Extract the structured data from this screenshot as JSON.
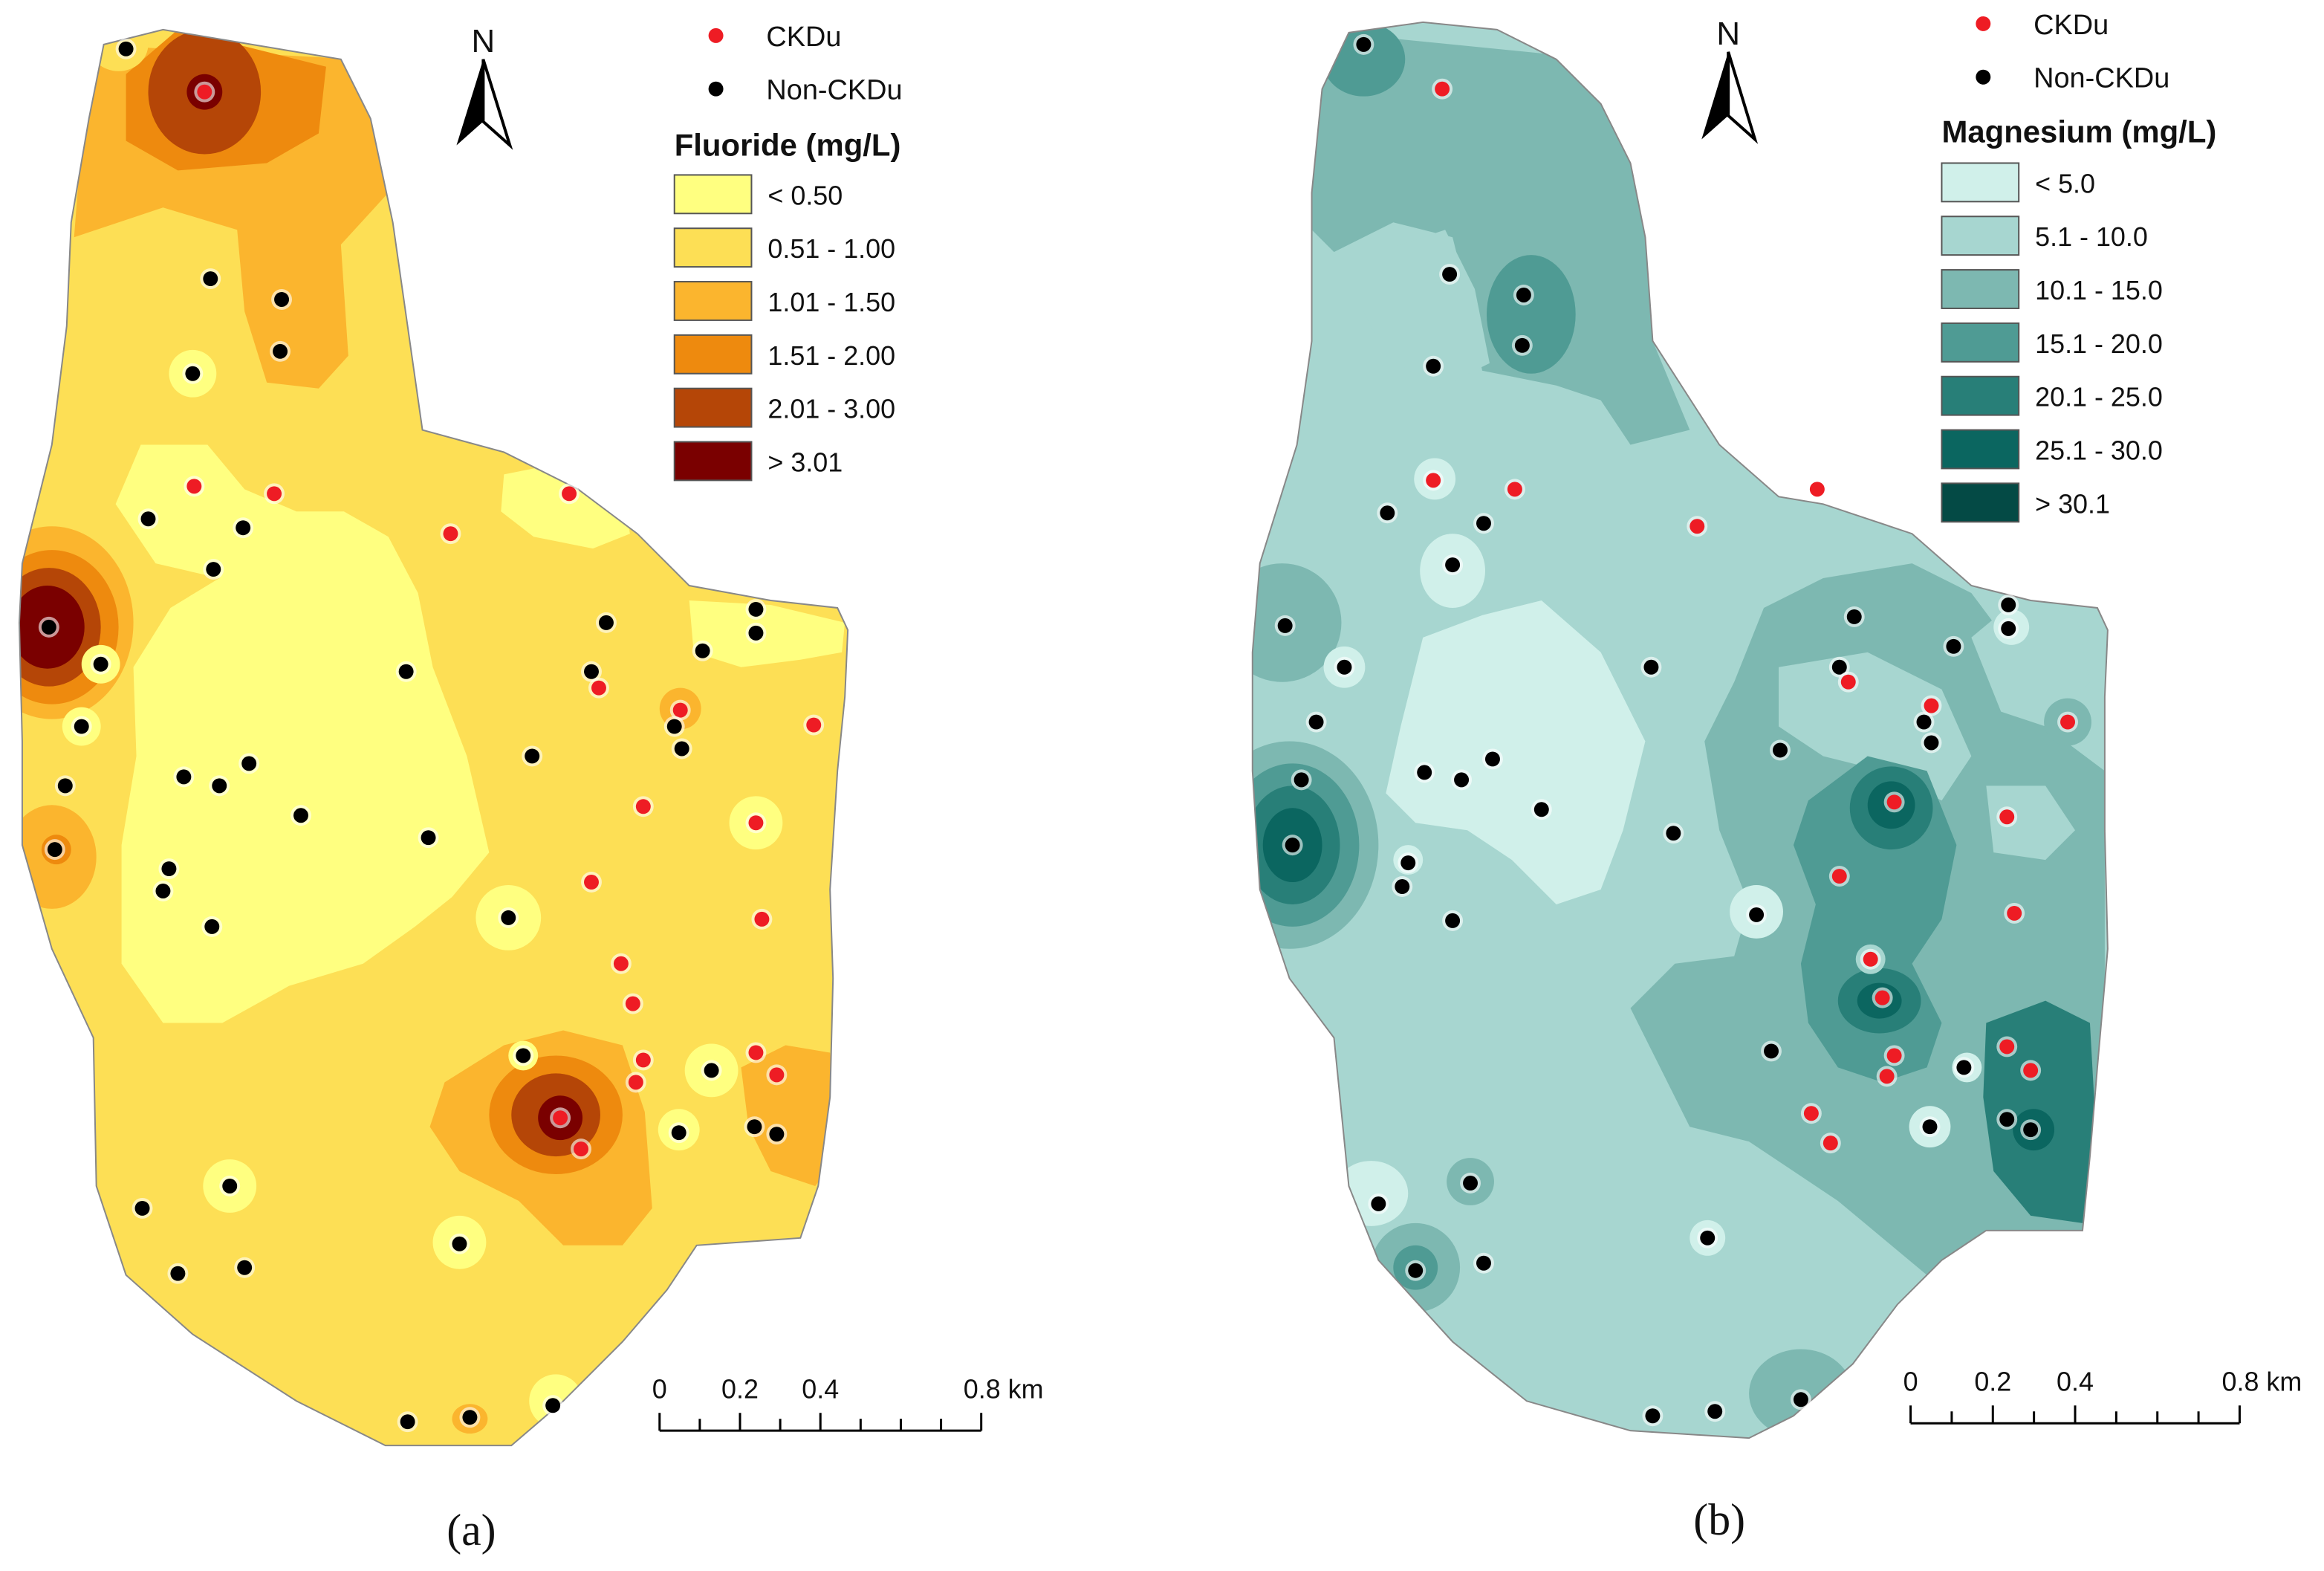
{
  "panels": [
    {
      "id": "a",
      "caption": "(a)",
      "north": "N",
      "legend_title": "Fluoride (mg/L)",
      "classes": [
        {
          "label": "< 0.50",
          "color": "#ffff80"
        },
        {
          "label": "0.51 - 1.00",
          "color": "#fddf55"
        },
        {
          "label": "1.01 - 1.50",
          "color": "#fbb52e"
        },
        {
          "label": "1.51 - 2.00",
          "color": "#ee8a0e"
        },
        {
          "label": "2.01 - 3.00",
          "color": "#b54607"
        },
        {
          "label": "> 3.01",
          "color": "#7a0000"
        }
      ],
      "points_legend": [
        {
          "label": "CKDu",
          "color": "#ee1c24"
        },
        {
          "label": "Non-CKDu",
          "color": "#000000"
        }
      ],
      "scale": {
        "ticks": [
          "0",
          "0.2",
          "0.4",
          "0.8 km"
        ]
      }
    },
    {
      "id": "b",
      "caption": "(b)",
      "north": "N",
      "legend_title": "Magnesium (mg/L)",
      "classes": [
        {
          "label": "< 5.0",
          "color": "#d0f0ea"
        },
        {
          "label": "5.1 - 10.0",
          "color": "#a7d6d0"
        },
        {
          "label": "10.1 - 15.0",
          "color": "#7db8b1"
        },
        {
          "label": "15.1 - 20.0",
          "color": "#4f9b94"
        },
        {
          "label": "20.1 - 25.0",
          "color": "#287f78"
        },
        {
          "label": "25.1 - 30.0",
          "color": "#0b6660"
        },
        {
          "label": "> 30.1",
          "color": "#044a45"
        }
      ],
      "points_legend": [
        {
          "label": "CKDu",
          "color": "#ee1c24"
        },
        {
          "label": "Non-CKDu",
          "color": "#000000"
        }
      ],
      "scale": {
        "ticks": [
          "0",
          "0.2",
          "0.4",
          "0.8 km"
        ]
      }
    }
  ]
}
